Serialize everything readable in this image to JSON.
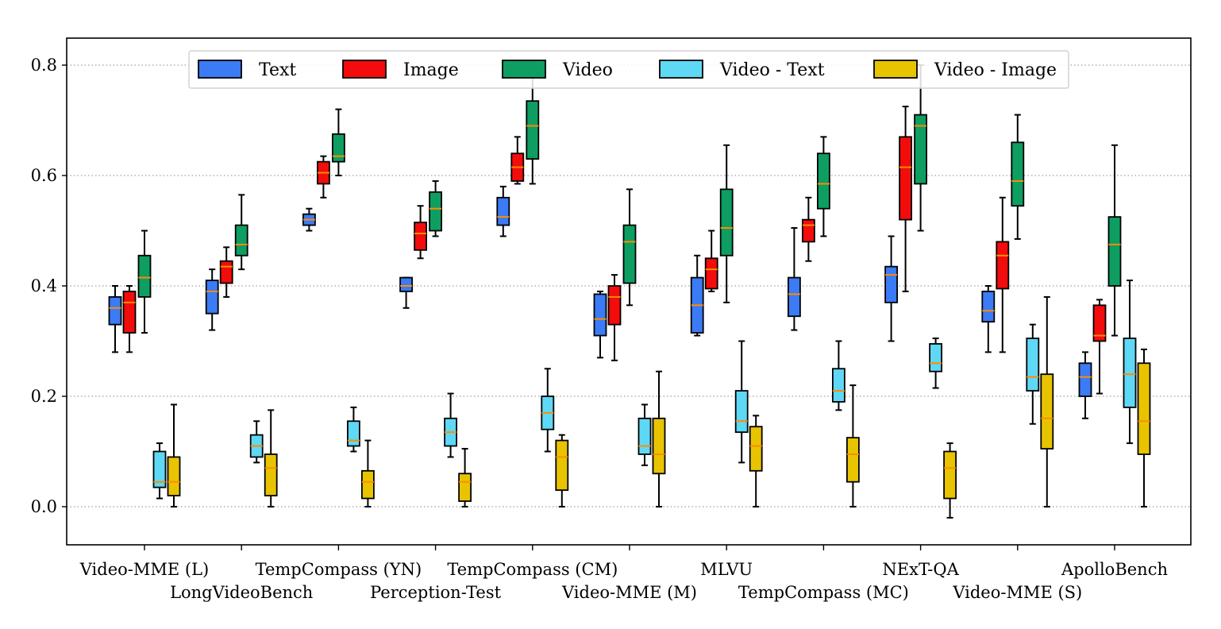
{
  "chart_data": {
    "type": "box",
    "title": "",
    "xlabel": "",
    "ylabel": "",
    "ylim": [
      -0.07,
      0.85
    ],
    "yticks": [
      "0.0",
      "0.2",
      "0.4",
      "0.6",
      "0.8"
    ],
    "grid": "horizontal dotted",
    "legend_position": "top",
    "categories": [
      "Video-MME (L)",
      "LongVideoBench",
      "TempCompass (YN)",
      "Perception-Test",
      "TempCompass (CM)",
      "Video-MME (M)",
      "MLVU",
      "TempCompass (MC)",
      "NExT-QA",
      "Video-MME (S)",
      "ApolloBench"
    ],
    "series": [
      {
        "name": "Text",
        "color": "#3b7bf5",
        "boxes": [
          [
            0.28,
            0.33,
            0.36,
            0.38,
            0.4
          ],
          [
            0.32,
            0.35,
            0.39,
            0.41,
            0.43
          ],
          [
            0.5,
            0.51,
            0.52,
            0.53,
            0.54
          ],
          [
            0.36,
            0.39,
            0.4,
            0.415,
            0.415
          ],
          [
            0.49,
            0.51,
            0.525,
            0.56,
            0.58
          ],
          [
            0.27,
            0.31,
            0.34,
            0.385,
            0.39
          ],
          [
            0.31,
            0.315,
            0.365,
            0.415,
            0.455
          ],
          [
            0.32,
            0.345,
            0.385,
            0.415,
            0.505
          ],
          [
            0.3,
            0.37,
            0.42,
            0.435,
            0.49
          ],
          [
            0.28,
            0.335,
            0.355,
            0.39,
            0.4
          ],
          [
            0.16,
            0.2,
            0.235,
            0.26,
            0.28
          ]
        ]
      },
      {
        "name": "Image",
        "color": "#f20c0c",
        "boxes": [
          [
            0.28,
            0.315,
            0.37,
            0.39,
            0.4
          ],
          [
            0.38,
            0.405,
            0.435,
            0.445,
            0.47
          ],
          [
            0.56,
            0.585,
            0.605,
            0.625,
            0.635
          ],
          [
            0.45,
            0.465,
            0.495,
            0.515,
            0.545
          ],
          [
            0.585,
            0.59,
            0.615,
            0.64,
            0.67
          ],
          [
            0.265,
            0.33,
            0.38,
            0.4,
            0.42
          ],
          [
            0.39,
            0.395,
            0.43,
            0.45,
            0.5
          ],
          [
            0.445,
            0.48,
            0.51,
            0.52,
            0.56
          ],
          [
            0.39,
            0.52,
            0.615,
            0.67,
            0.725
          ],
          [
            0.28,
            0.395,
            0.455,
            0.48,
            0.56
          ],
          [
            0.205,
            0.3,
            0.31,
            0.365,
            0.375
          ]
        ]
      },
      {
        "name": "Video",
        "color": "#0e9e62",
        "boxes": [
          [
            0.315,
            0.38,
            0.415,
            0.455,
            0.5
          ],
          [
            0.43,
            0.455,
            0.475,
            0.51,
            0.565
          ],
          [
            0.6,
            0.625,
            0.635,
            0.675,
            0.72
          ],
          [
            0.49,
            0.5,
            0.54,
            0.57,
            0.59
          ],
          [
            0.585,
            0.63,
            0.69,
            0.735,
            0.79
          ],
          [
            0.365,
            0.405,
            0.48,
            0.51,
            0.575
          ],
          [
            0.37,
            0.455,
            0.505,
            0.575,
            0.655
          ],
          [
            0.49,
            0.54,
            0.585,
            0.64,
            0.67
          ],
          [
            0.5,
            0.585,
            0.69,
            0.71,
            0.8
          ],
          [
            0.485,
            0.545,
            0.59,
            0.66,
            0.71
          ],
          [
            0.31,
            0.4,
            0.475,
            0.525,
            0.655
          ]
        ]
      },
      {
        "name": "Video - Text",
        "color": "#5fd8f5",
        "boxes": [
          [
            0.015,
            0.035,
            0.045,
            0.1,
            0.115
          ],
          [
            0.08,
            0.09,
            0.11,
            0.13,
            0.155
          ],
          [
            0.1,
            0.11,
            0.12,
            0.155,
            0.18
          ],
          [
            0.09,
            0.11,
            0.135,
            0.16,
            0.205
          ],
          [
            0.1,
            0.14,
            0.17,
            0.2,
            0.25
          ],
          [
            0.075,
            0.095,
            0.11,
            0.16,
            0.185
          ],
          [
            0.08,
            0.135,
            0.155,
            0.21,
            0.3
          ],
          [
            0.175,
            0.19,
            0.21,
            0.25,
            0.3
          ],
          [
            0.215,
            0.245,
            0.26,
            0.295,
            0.305
          ],
          [
            0.15,
            0.21,
            0.235,
            0.305,
            0.33
          ],
          [
            0.115,
            0.18,
            0.24,
            0.305,
            0.41
          ]
        ]
      },
      {
        "name": "Video - Image",
        "color": "#e8c400",
        "boxes": [
          [
            0.0,
            0.02,
            0.045,
            0.09,
            0.185
          ],
          [
            0.0,
            0.02,
            0.07,
            0.095,
            0.175
          ],
          [
            0.0,
            0.015,
            0.045,
            0.065,
            0.12
          ],
          [
            0.0,
            0.01,
            0.045,
            0.06,
            0.105
          ],
          [
            0.0,
            0.03,
            0.09,
            0.12,
            0.13
          ],
          [
            0.0,
            0.06,
            0.095,
            0.16,
            0.245
          ],
          [
            0.0,
            0.065,
            0.11,
            0.145,
            0.165
          ],
          [
            0.0,
            0.045,
            0.095,
            0.125,
            0.22
          ],
          [
            -0.02,
            0.015,
            0.07,
            0.1,
            0.115
          ],
          [
            0.0,
            0.105,
            0.16,
            0.24,
            0.38
          ],
          [
            0.0,
            0.095,
            0.155,
            0.26,
            0.285
          ]
        ]
      }
    ],
    "median_color": "#ff8c00"
  }
}
